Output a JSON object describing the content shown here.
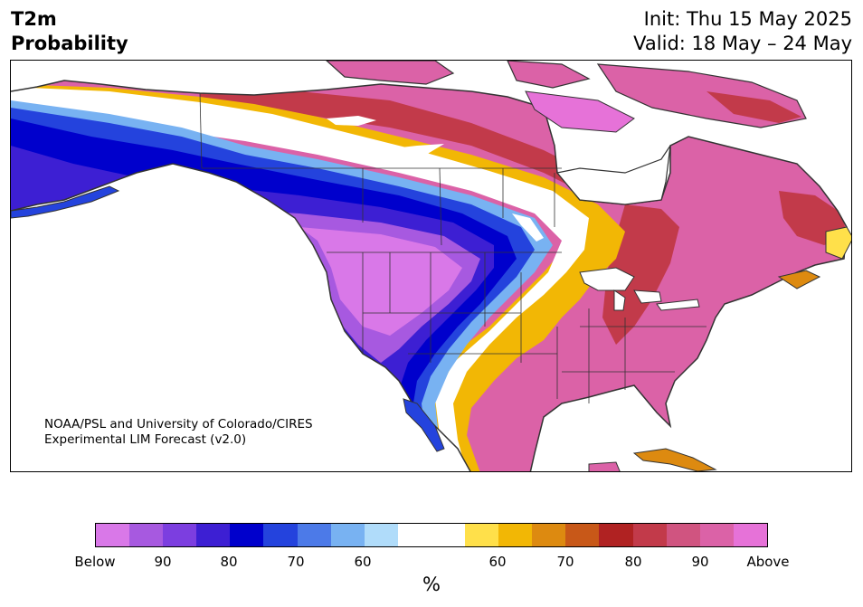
{
  "title": {
    "line1": "T2m",
    "line2": "Probability"
  },
  "init": {
    "line1": "Init: Thu 15 May 2025",
    "line2": "Valid: 18 May – 24 May"
  },
  "credit": {
    "line1": "NOAA/PSL and University of Colorado/CIRES",
    "line2": "Experimental LIM Forecast (v2.0)"
  },
  "colorbar": {
    "colors": [
      "#d978e8",
      "#a759e0",
      "#7c3ee0",
      "#3d1fd3",
      "#0000cc",
      "#2443dd",
      "#4c7ae8",
      "#78b2f2",
      "#b0dcfa",
      "#ffffff",
      "#ffffff",
      "#ffe04a",
      "#f2b705",
      "#dd8a10",
      "#c85818",
      "#b02222",
      "#c23a4a",
      "#d05480",
      "#db62a7",
      "#e672d8"
    ],
    "ticks": [
      "Below",
      "90",
      "80",
      "70",
      "60",
      "60",
      "70",
      "80",
      "90",
      "Above"
    ],
    "unit": "%"
  },
  "colors": {
    "above_strong": "#db62a7",
    "above_red": "#c23a4a",
    "below_purple": "#a759e0",
    "below_blue": "#2443dd",
    "land_outline": "#333333"
  }
}
